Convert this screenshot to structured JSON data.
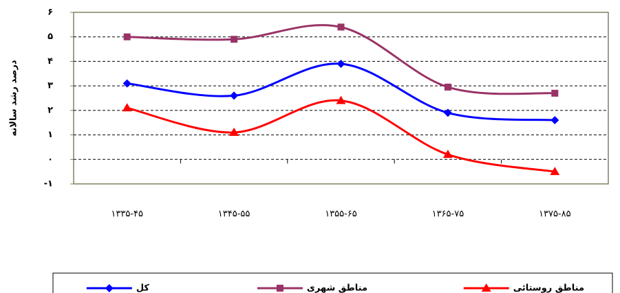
{
  "chart_data": {
    "type": "line",
    "y_label": "درصد رشد سالانه",
    "categories": [
      "۱۳۳۵-۴۵",
      "۱۳۴۵-۵۵",
      "۱۳۵۵-۶۵",
      "۱۳۶۵-۷۵",
      "۱۳۷۵-۸۵"
    ],
    "series": [
      {
        "name": "کل",
        "color": "#0000ff",
        "marker": "diamond",
        "values": [
          3.1,
          2.6,
          3.9,
          1.9,
          1.6
        ]
      },
      {
        "name": "مناطق شهری",
        "color": "#993366",
        "marker": "square",
        "values": [
          5.0,
          4.9,
          5.4,
          2.95,
          2.7
        ]
      },
      {
        "name": "مناطق روستائی",
        "color": "#ff0000",
        "marker": "triangle",
        "values": [
          2.1,
          1.1,
          2.4,
          0.2,
          -0.5
        ]
      }
    ],
    "ylim": [
      -1,
      6
    ],
    "yticks": [
      {
        "value": -1,
        "label": "-۱"
      },
      {
        "value": 0,
        "label": "۰"
      },
      {
        "value": 1,
        "label": "۱"
      },
      {
        "value": 2,
        "label": "۲"
      },
      {
        "value": 3,
        "label": "۳"
      },
      {
        "value": 4,
        "label": "۴"
      },
      {
        "value": 5,
        "label": "۵"
      },
      {
        "value": 6,
        "label": "۶"
      }
    ],
    "grid": true,
    "smooth": true,
    "legend": "bottom"
  }
}
